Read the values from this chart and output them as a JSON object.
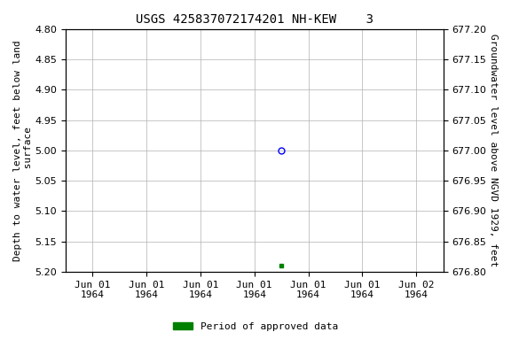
{
  "title": "USGS 425837072174201 NH-KEW    3",
  "ylabel_left": "Depth to water level, feet below land\n surface",
  "ylabel_right": "Groundwater level above NGVD 1929, feet",
  "ylim_left": [
    5.2,
    4.8
  ],
  "ylim_right": [
    676.8,
    677.2
  ],
  "yticks_left": [
    4.8,
    4.85,
    4.9,
    4.95,
    5.0,
    5.05,
    5.1,
    5.15,
    5.2
  ],
  "yticks_right": [
    677.2,
    677.15,
    677.1,
    677.05,
    677.0,
    676.95,
    676.9,
    676.85,
    676.8
  ],
  "data_point_open_x": 3.5,
  "data_point_open_depth": 5.0,
  "data_point_green_x": 3.5,
  "data_point_green_depth": 5.19,
  "open_circle_color": "#0000ff",
  "green_square_color": "#008000",
  "legend_label": "Period of approved data",
  "background_color": "#ffffff",
  "grid_color": "#b0b0b0",
  "title_fontsize": 10,
  "axis_label_fontsize": 8,
  "tick_fontsize": 8,
  "xtick_labels": [
    "Jun 01\n1964",
    "Jun 01\n1964",
    "Jun 01\n1964",
    "Jun 01\n1964",
    "Jun 01\n1964",
    "Jun 01\n1964",
    "Jun 02\n1964"
  ],
  "num_xticks": 7,
  "xlim": [
    0,
    6
  ]
}
